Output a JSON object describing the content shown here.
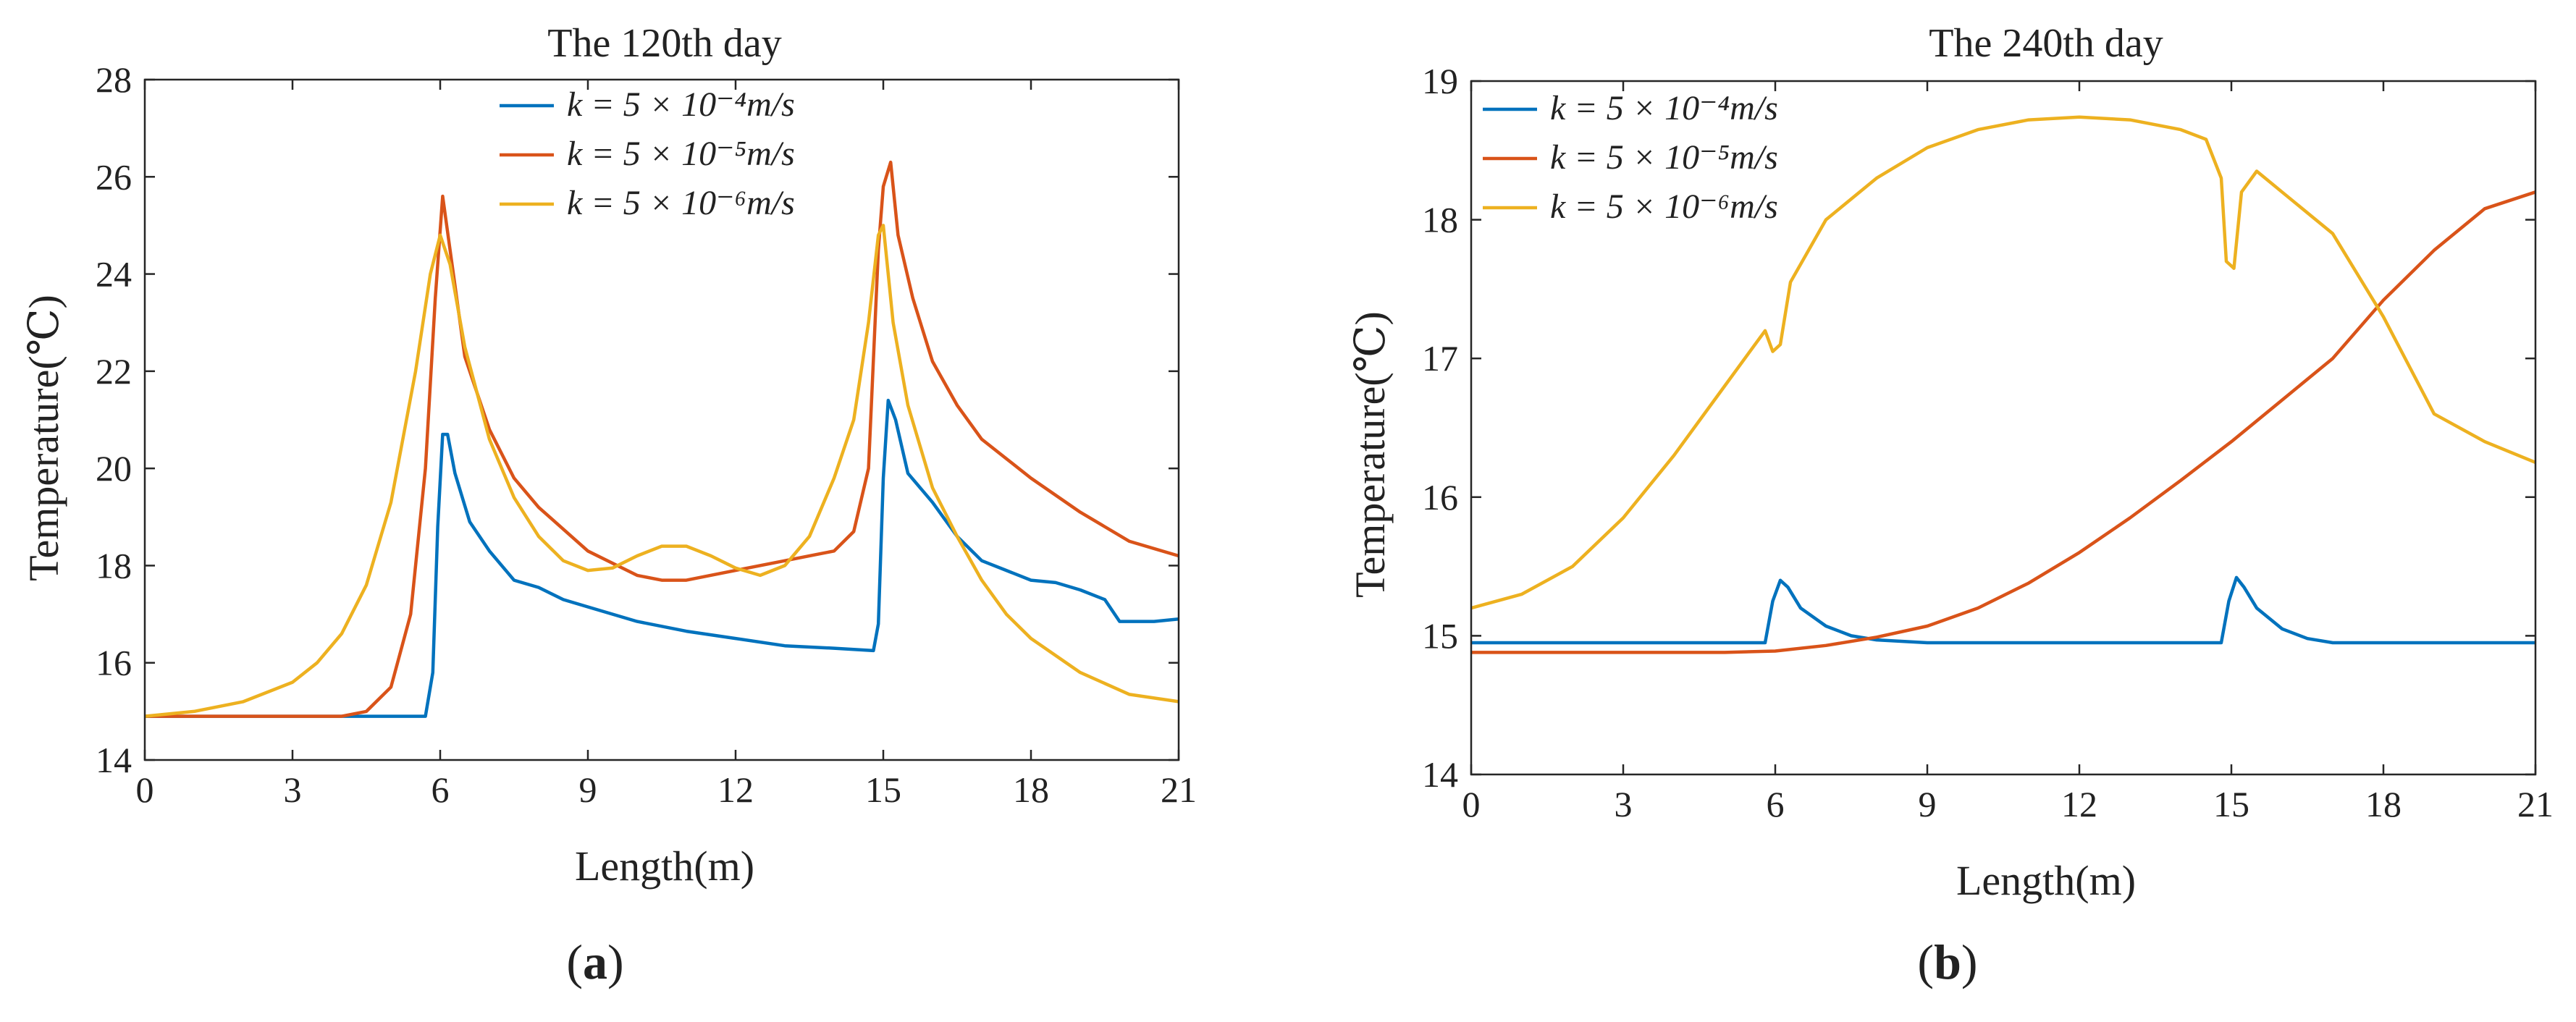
{
  "figure": {
    "panels": [
      {
        "label_open": "(",
        "label_letter": "a",
        "label_close": ")"
      },
      {
        "label_open": "(",
        "label_letter": "b",
        "label_close": ")"
      }
    ]
  },
  "chart_data": [
    {
      "type": "line",
      "title": "The 120th day",
      "xlabel": "Length(m)",
      "ylabel": "Temperature(℃)",
      "xlim": [
        0,
        21
      ],
      "ylim": [
        14,
        28
      ],
      "xticks": [
        0,
        3,
        6,
        9,
        12,
        15,
        18,
        21
      ],
      "yticks": [
        14,
        16,
        18,
        20,
        22,
        24,
        26,
        28
      ],
      "grid": false,
      "legend": "top-center",
      "series": [
        {
          "name": "k = 5 × 10⁻⁴m/s",
          "color": "#0072BD",
          "x": [
            0,
            5.7,
            5.85,
            5.95,
            6.05,
            6.15,
            6.3,
            6.6,
            7.0,
            7.5,
            8.0,
            8.5,
            9.0,
            10.0,
            11.0,
            12.0,
            13.0,
            14.0,
            14.8,
            14.9,
            15.0,
            15.1,
            15.25,
            15.5,
            16.0,
            16.5,
            17.0,
            17.5,
            18.0,
            18.5,
            19.0,
            19.5,
            19.8,
            20.5,
            21.0
          ],
          "y": [
            14.9,
            14.9,
            15.8,
            18.8,
            20.7,
            20.7,
            19.9,
            18.9,
            18.3,
            17.7,
            17.55,
            17.3,
            17.15,
            16.85,
            16.65,
            16.5,
            16.35,
            16.3,
            16.25,
            16.8,
            19.8,
            21.4,
            21.0,
            19.9,
            19.3,
            18.6,
            18.1,
            17.9,
            17.7,
            17.65,
            17.5,
            17.3,
            16.85,
            16.85,
            16.9
          ]
        },
        {
          "name": "k = 5 × 10⁻⁵m/s",
          "color": "#D95319",
          "x": [
            0,
            4.0,
            4.5,
            5.0,
            5.4,
            5.7,
            5.9,
            6.05,
            6.2,
            6.5,
            7.0,
            7.5,
            8.0,
            9.0,
            10.0,
            10.5,
            11.0,
            12.0,
            13.0,
            14.0,
            14.4,
            14.7,
            14.9,
            15.0,
            15.15,
            15.3,
            15.6,
            16.0,
            16.5,
            17.0,
            18.0,
            19.0,
            20.0,
            21.0
          ],
          "y": [
            14.9,
            14.9,
            15.0,
            15.5,
            17.0,
            20.0,
            23.5,
            25.6,
            24.5,
            22.3,
            20.8,
            19.8,
            19.2,
            18.3,
            17.8,
            17.7,
            17.7,
            17.9,
            18.1,
            18.3,
            18.7,
            20.0,
            24.5,
            25.8,
            26.3,
            24.8,
            23.5,
            22.2,
            21.3,
            20.6,
            19.8,
            19.1,
            18.5,
            18.2
          ]
        },
        {
          "name": "k = 5 × 10⁻⁶m/s",
          "color": "#EDB120",
          "x": [
            0,
            1.0,
            2.0,
            3.0,
            3.5,
            4.0,
            4.5,
            5.0,
            5.5,
            5.8,
            6.0,
            6.2,
            6.5,
            7.0,
            7.5,
            8.0,
            8.5,
            9.0,
            9.5,
            10.0,
            10.5,
            11.0,
            11.5,
            12.0,
            12.5,
            13.0,
            13.5,
            14.0,
            14.4,
            14.7,
            14.9,
            15.0,
            15.2,
            15.5,
            16.0,
            16.5,
            17.0,
            17.5,
            18.0,
            19.0,
            20.0,
            21.0
          ],
          "y": [
            14.9,
            15.0,
            15.2,
            15.6,
            16.0,
            16.6,
            17.6,
            19.3,
            22.0,
            24.0,
            24.8,
            24.2,
            22.5,
            20.6,
            19.4,
            18.6,
            18.1,
            17.9,
            17.95,
            18.2,
            18.4,
            18.4,
            18.2,
            17.95,
            17.8,
            18.0,
            18.6,
            19.8,
            21.0,
            23.0,
            24.8,
            25.0,
            23.0,
            21.3,
            19.6,
            18.6,
            17.7,
            17.0,
            16.5,
            15.8,
            15.35,
            15.2
          ]
        }
      ]
    },
    {
      "type": "line",
      "title": "The 240th day",
      "xlabel": "Length(m)",
      "ylabel": "Temperature(℃)",
      "xlim": [
        0,
        21
      ],
      "ylim": [
        14,
        19
      ],
      "xticks": [
        0,
        3,
        6,
        9,
        12,
        15,
        18,
        21
      ],
      "yticks": [
        14,
        15,
        16,
        17,
        18,
        19
      ],
      "grid": false,
      "legend": "top-left",
      "series": [
        {
          "name": "k = 5 × 10⁻⁴m/s",
          "color": "#0072BD",
          "x": [
            0,
            5.8,
            5.95,
            6.1,
            6.25,
            6.5,
            7.0,
            7.5,
            8.0,
            9.0,
            12.0,
            14.8,
            14.95,
            15.1,
            15.25,
            15.5,
            16.0,
            16.5,
            17.0,
            18.0,
            21.0
          ],
          "y": [
            14.95,
            14.95,
            15.25,
            15.4,
            15.35,
            15.2,
            15.07,
            15.0,
            14.97,
            14.95,
            14.95,
            14.95,
            15.25,
            15.42,
            15.35,
            15.2,
            15.05,
            14.98,
            14.95,
            14.95,
            14.95
          ]
        },
        {
          "name": "k = 5 × 10⁻⁵m/s",
          "color": "#D95319",
          "x": [
            0,
            5.0,
            6.0,
            7.0,
            8.0,
            9.0,
            10.0,
            11.0,
            12.0,
            13.0,
            14.0,
            15.0,
            16.0,
            17.0,
            18.0,
            19.0,
            20.0,
            21.0
          ],
          "y": [
            14.88,
            14.88,
            14.89,
            14.93,
            14.99,
            15.07,
            15.2,
            15.38,
            15.6,
            15.85,
            16.12,
            16.4,
            16.7,
            17.0,
            17.42,
            17.78,
            18.08,
            18.2
          ]
        },
        {
          "name": "k = 5 × 10⁻⁶m/s",
          "color": "#EDB120",
          "x": [
            0,
            1.0,
            2.0,
            3.0,
            4.0,
            5.0,
            5.5,
            5.8,
            5.95,
            6.1,
            6.3,
            7.0,
            8.0,
            9.0,
            10.0,
            11.0,
            12.0,
            13.0,
            14.0,
            14.5,
            14.8,
            14.9,
            15.05,
            15.2,
            15.5,
            16.0,
            17.0,
            18.0,
            19.0,
            20.0,
            21.0
          ],
          "y": [
            15.2,
            15.3,
            15.5,
            15.85,
            16.3,
            16.8,
            17.05,
            17.2,
            17.05,
            17.1,
            17.55,
            18.0,
            18.3,
            18.52,
            18.65,
            18.72,
            18.74,
            18.72,
            18.65,
            18.58,
            18.3,
            17.7,
            17.65,
            18.2,
            18.35,
            18.2,
            17.9,
            17.3,
            16.6,
            16.4,
            16.25
          ]
        }
      ]
    }
  ]
}
